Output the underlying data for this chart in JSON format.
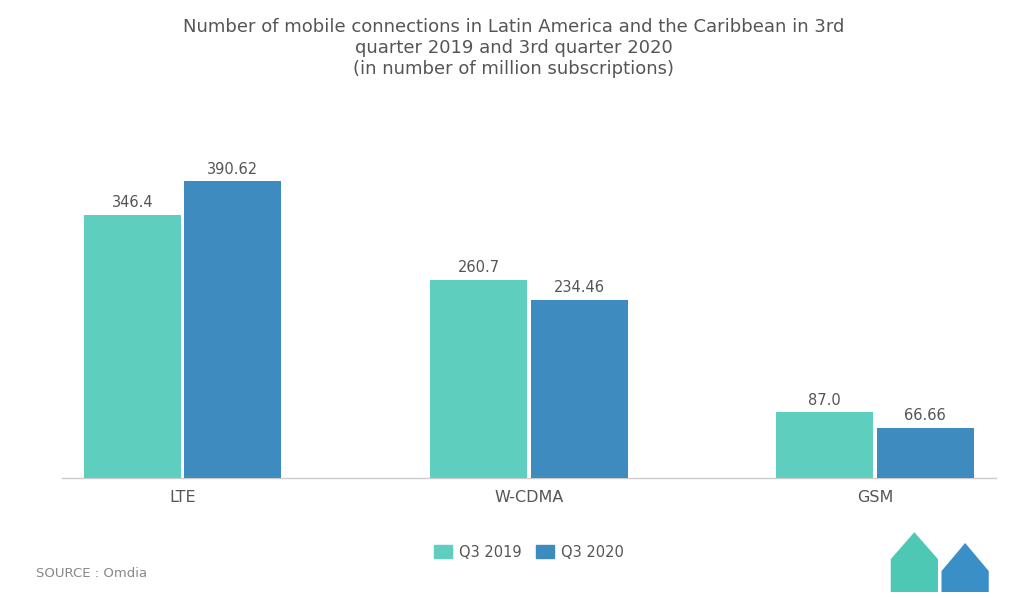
{
  "title": "Number of mobile connections in Latin America and the Caribbean in 3rd\nquarter 2019 and 3rd quarter 2020\n(in number of million subscriptions)",
  "categories": [
    "LTE",
    "W-CDMA",
    "GSM"
  ],
  "q3_2019": [
    346.4,
    260.7,
    87.0
  ],
  "q3_2020": [
    390.62,
    234.46,
    66.66
  ],
  "color_2019": "#5ECFBE",
  "color_2020": "#3D8BBF",
  "label_2019": "Q3 2019",
  "label_2020": "Q3 2020",
  "background_color": "#ffffff",
  "title_color": "#555555",
  "label_color": "#555555",
  "source_text": "SOURCE : Omdia",
  "bar_width": 0.28,
  "ylim": [
    0,
    440
  ],
  "title_fontsize": 13.0,
  "value_fontsize": 10.5,
  "tick_fontsize": 11.5,
  "legend_fontsize": 10.5,
  "source_fontsize": 9.5
}
